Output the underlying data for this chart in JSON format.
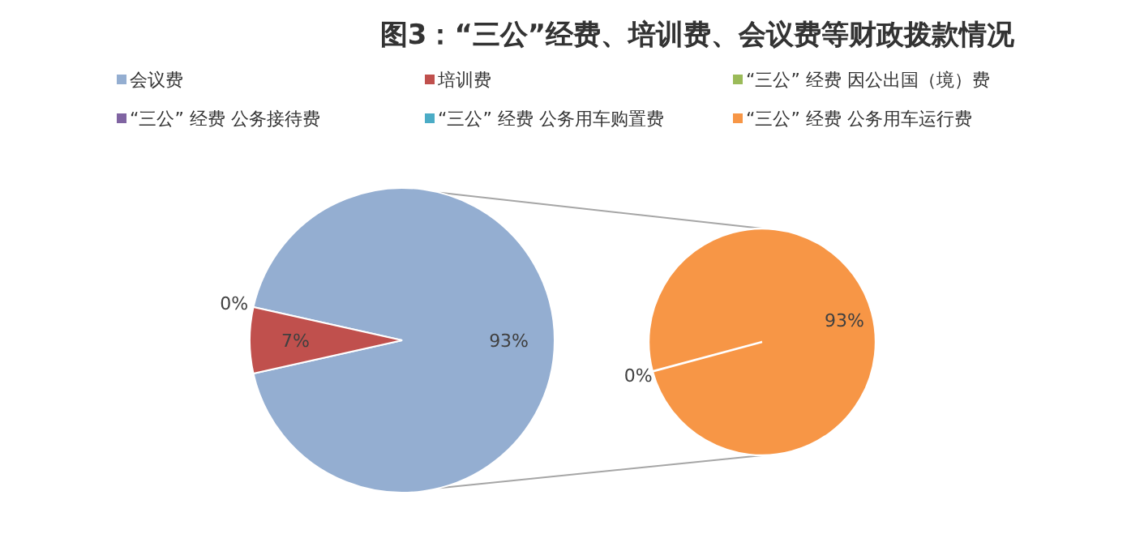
{
  "chart_data": [
    {
      "type": "pie",
      "title": "图3：“三公”经费、培训费、会议费等财政拨款情况",
      "categories": [
        "会议费",
        "培训费",
        null
      ],
      "values": [
        93,
        7,
        0
      ],
      "colors": [
        "#94aed1",
        "#c0504d",
        null
      ],
      "value_labels": [
        "93%",
        "7%",
        "0%"
      ],
      "legend": "top"
    },
    {
      "type": "pie",
      "categories": [
        "“三公” 经费 因公出国（境）费",
        "“三公” 经费 公务接待费",
        "“三公” 经费 公务用车购置费",
        "“三公” 经费 公务用车运行费"
      ],
      "values": [
        0,
        0,
        0,
        93
      ],
      "colors": [
        "#9bbb59",
        "#8064a2",
        "#4bacc6",
        "#f79646"
      ],
      "value_labels": [
        null,
        null,
        "0%",
        "93%"
      ],
      "legend": "top"
    }
  ]
}
